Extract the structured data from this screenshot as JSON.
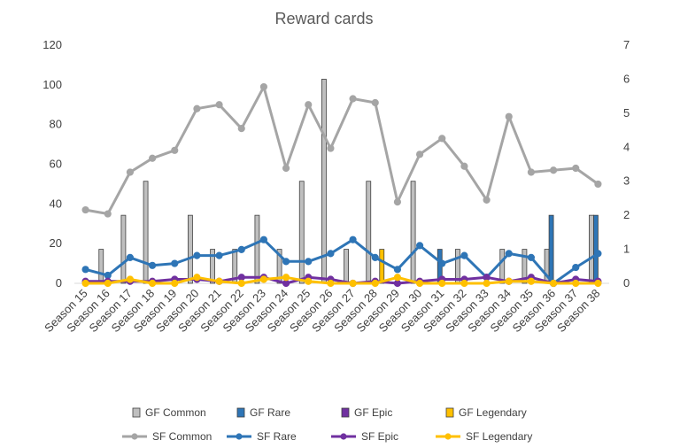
{
  "chart_data": {
    "type": "bar+line",
    "title": "Reward cards",
    "categories": [
      "Season 15",
      "Season 16",
      "Season 17",
      "Season 18",
      "Season 19",
      "Season 20",
      "Season 21",
      "Season 22",
      "Season 23",
      "Season 24",
      "Season 25",
      "Season 26",
      "Season 27",
      "Season 28",
      "Season 29",
      "Season 30",
      "Season 31",
      "Season 32",
      "Season 33",
      "Season 34",
      "Season 35",
      "Season 36",
      "Season 37",
      "Season 38"
    ],
    "left_axis": {
      "min": 0,
      "max": 120,
      "step": 20
    },
    "right_axis": {
      "min": 0,
      "max": 7,
      "step": 1
    },
    "bar_series": [
      {
        "name": "GF Common",
        "color": "#bfbfbf",
        "values": [
          0,
          1,
          2,
          3,
          0,
          2,
          1,
          1,
          2,
          1,
          3,
          6,
          1,
          3,
          0,
          3,
          0,
          1,
          0,
          1,
          1,
          1,
          0,
          2
        ]
      },
      {
        "name": "GF Rare",
        "color": "#2e75b6",
        "values": [
          0,
          0,
          0,
          0,
          0,
          0,
          0,
          0,
          0,
          0,
          0,
          0,
          0,
          0,
          0,
          0,
          1,
          0,
          0,
          0,
          0,
          2,
          0,
          2
        ]
      },
      {
        "name": "GF Epic",
        "color": "#7030a0",
        "values": [
          0,
          0,
          0,
          0,
          0,
          0,
          0,
          0,
          0,
          0,
          0,
          0,
          0,
          0,
          0,
          0,
          0,
          0,
          0,
          0,
          0,
          0,
          0,
          0
        ]
      },
      {
        "name": "GF Legendary",
        "color": "#ffc000",
        "values": [
          0,
          0,
          0,
          0,
          0,
          0,
          0,
          0,
          0,
          0,
          0,
          0,
          0,
          1,
          0,
          0,
          0,
          0,
          0,
          0,
          0,
          0,
          0,
          0
        ]
      }
    ],
    "line_series": [
      {
        "name": "SF Common",
        "color": "#a5a5a5",
        "values": [
          37,
          35,
          56,
          63,
          67,
          88,
          90,
          78,
          99,
          58,
          90,
          68,
          93,
          91,
          41,
          65,
          73,
          59,
          42,
          84,
          56,
          57,
          58,
          50
        ]
      },
      {
        "name": "SF Rare",
        "color": "#2e75b6",
        "values": [
          7,
          4,
          13,
          9,
          10,
          14,
          14,
          17,
          22,
          11,
          11,
          15,
          22,
          13,
          7,
          19,
          10,
          14,
          3,
          15,
          13,
          0,
          8,
          15
        ]
      },
      {
        "name": "SF Epic",
        "color": "#7030a0",
        "values": [
          1,
          1,
          1,
          1,
          2,
          2,
          1,
          3,
          3,
          0,
          3,
          2,
          0,
          1,
          0,
          1,
          2,
          2,
          3,
          1,
          3,
          0,
          2,
          1
        ]
      },
      {
        "name": "SF Legendary",
        "color": "#ffc000",
        "values": [
          0,
          0,
          2,
          0,
          0,
          3,
          1,
          0,
          2,
          3,
          1,
          0,
          0,
          0,
          3,
          0,
          0,
          0,
          0,
          1,
          1,
          0,
          0,
          0
        ]
      }
    ],
    "legend_position": "bottom",
    "grid": false
  }
}
